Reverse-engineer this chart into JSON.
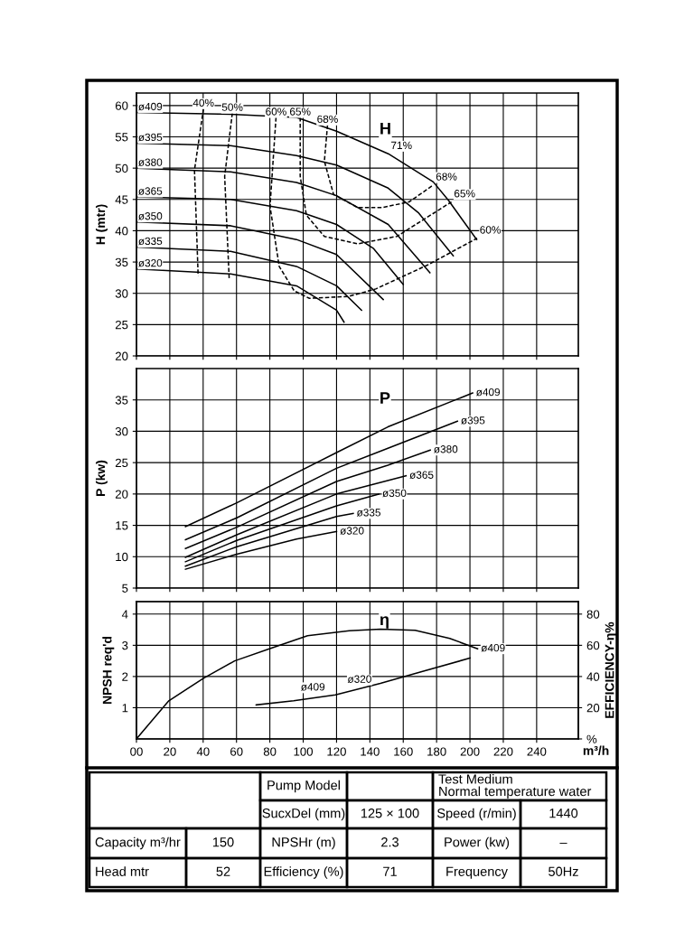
{
  "chart_data": [
    {
      "type": "line",
      "ylabel": "H (mtr)",
      "xlim": [
        0,
        265
      ],
      "ylim": [
        20,
        62
      ],
      "xticks": [
        0,
        20,
        40,
        60,
        80,
        100,
        120,
        140,
        160,
        180,
        200,
        220,
        240
      ],
      "yticks": [
        20,
        25,
        30,
        35,
        40,
        45,
        50,
        55,
        60
      ],
      "tick_labels": "y",
      "grid": true,
      "legend": false,
      "marker": "none",
      "series": [
        {
          "name": "ø409",
          "color": "#000000",
          "line_style": "solid",
          "x": [
            0,
            56.5,
            96,
            120,
            151,
            178,
            187,
            204
          ],
          "values": [
            58.9,
            58.6,
            58.1,
            55.9,
            52.3,
            47.8,
            44.9,
            38.6
          ]
        },
        {
          "name": "ø395",
          "color": "#000000",
          "line_style": "solid",
          "x": [
            0,
            56.5,
            96,
            120,
            151,
            169,
            190
          ],
          "values": [
            54.0,
            53.6,
            52.0,
            50.5,
            46.8,
            42.9,
            36.0
          ]
        },
        {
          "name": "ø380",
          "color": "#000000",
          "line_style": "solid",
          "x": [
            0,
            56.5,
            96,
            120,
            151,
            176
          ],
          "values": [
            50.0,
            49.4,
            47.7,
            45.6,
            41.0,
            33.3
          ]
        },
        {
          "name": "ø365",
          "color": "#000000",
          "line_style": "solid",
          "x": [
            0,
            56.5,
            96,
            120,
            142,
            160
          ],
          "values": [
            45.4,
            45.0,
            43.2,
            41.0,
            37.2,
            31.4
          ]
        },
        {
          "name": "ø350",
          "color": "#000000",
          "line_style": "solid",
          "x": [
            0,
            56.5,
            96,
            120,
            148
          ],
          "values": [
            41.4,
            40.8,
            38.6,
            36.2,
            29.0
          ]
        },
        {
          "name": "ø335",
          "color": "#000000",
          "line_style": "solid",
          "x": [
            0,
            56.5,
            96,
            120,
            135
          ],
          "values": [
            37.4,
            36.7,
            34.3,
            31.2,
            27.3
          ]
        },
        {
          "name": "ø320",
          "color": "#000000",
          "line_style": "solid",
          "x": [
            0,
            56.5,
            96,
            120,
            124.5
          ],
          "values": [
            33.9,
            33.1,
            31.2,
            27.3,
            25.4
          ]
        },
        {
          "name": "40%",
          "color": "#000000",
          "line_style": "dashed",
          "x": [
            40.2,
            34.8,
            37.0
          ],
          "values": [
            59.5,
            49.7,
            32.8
          ]
        },
        {
          "name": "50%",
          "color": "#000000",
          "line_style": "dashed",
          "x": [
            57.5,
            52.9,
            55.6
          ],
          "values": [
            58.8,
            48.7,
            32.4
          ]
        },
        {
          "name": "60%",
          "color": "#000000",
          "line_style": "dashed",
          "x": [
            83.7,
            80.1,
            85.6,
            94.6,
            103.7,
            127.2,
            143.5,
            174.4,
            204.3
          ],
          "values": [
            58.1,
            43.9,
            34.3,
            30.4,
            29.2,
            29.5,
            30.7,
            34.5,
            38.8
          ]
        },
        {
          "name": "65%",
          "color": "#000000",
          "line_style": "dashed",
          "x": [
            98.2,
            98.2,
            101.9,
            112.7,
            132.7,
            156.2,
            188.9
          ],
          "values": [
            58.1,
            48.7,
            42.5,
            39.1,
            37.9,
            39.1,
            44.6
          ]
        },
        {
          "name": "68%",
          "color": "#000000",
          "line_style": "dashed",
          "x": [
            114.6,
            112.7,
            118.2,
            132.7,
            147.2,
            163.5,
            178
          ],
          "values": [
            56.9,
            51.1,
            45.8,
            43.7,
            43.7,
            44.6,
            47.3
          ]
        }
      ],
      "annotations": [
        "H",
        {
          "text": "71%",
          "x": 151,
          "y": 52.3
        },
        {
          "text": "68%",
          "x": 178,
          "y": 47.3
        },
        {
          "text": "65%",
          "x": 188.9,
          "y": 44.6
        },
        {
          "text": "60%",
          "x": 204.3,
          "y": 38.8
        }
      ]
    },
    {
      "type": "line",
      "ylabel": "P (kw)",
      "xlim": [
        0,
        265
      ],
      "ylim": [
        5,
        40
      ],
      "xticks": [
        0,
        20,
        40,
        60,
        80,
        100,
        120,
        140,
        160,
        180,
        200,
        220,
        240
      ],
      "yticks": [
        5,
        10,
        15,
        20,
        25,
        30,
        35
      ],
      "tick_labels": "y",
      "grid": true,
      "legend": false,
      "marker": "none",
      "series": [
        {
          "name": "ø409",
          "color": "#000000",
          "x": [
            29.4,
            60.2,
            120,
            150.8,
            201.6
          ],
          "values": [
            14.8,
            18.6,
            26.6,
            30.7,
            36.1
          ]
        },
        {
          "name": "ø395",
          "color": "#000000",
          "x": [
            29.4,
            60.2,
            120,
            150.8,
            192.5
          ],
          "values": [
            12.7,
            16.2,
            24.1,
            27.3,
            31.6
          ]
        },
        {
          "name": "ø380",
          "color": "#000000",
          "x": [
            29.4,
            60.2,
            120,
            150.8,
            176.2
          ],
          "values": [
            11.3,
            14.7,
            22.0,
            24.6,
            27.0
          ]
        },
        {
          "name": "ø365",
          "color": "#000000",
          "x": [
            29.4,
            60.2,
            120,
            161.7
          ],
          "values": [
            9.9,
            13.5,
            20.0,
            22.9
          ]
        },
        {
          "name": "ø350",
          "color": "#000000",
          "x": [
            29.4,
            60.2,
            120,
            145.4
          ],
          "values": [
            9.2,
            12.6,
            18.1,
            20.0
          ]
        },
        {
          "name": "ø335",
          "color": "#000000",
          "x": [
            29.4,
            60.2,
            120,
            130
          ],
          "values": [
            8.5,
            11.6,
            16.4,
            16.9
          ]
        },
        {
          "name": "ø320",
          "color": "#000000",
          "x": [
            29.4,
            60.2,
            96,
            120
          ],
          "values": [
            8.0,
            10.4,
            12.8,
            14.0
          ]
        }
      ],
      "annotations": [
        "P"
      ]
    },
    {
      "type": "line",
      "xlabel": "m³/h",
      "ylabel": "NPSH req'd",
      "y2label": "EFFICIENCY-η%",
      "xlim": [
        0,
        265
      ],
      "ylim": [
        0,
        4.4
      ],
      "y2lim": [
        0,
        88
      ],
      "xticks": [
        {
          "value": 0,
          "label": "00"
        },
        20,
        40,
        60,
        80,
        100,
        120,
        140,
        160,
        180,
        200,
        220,
        240
      ],
      "yticks": [
        1,
        2,
        3,
        4
      ],
      "y2ticks": [
        {
          "value": 0,
          "label": "%"
        },
        20,
        40,
        60,
        80
      ],
      "grid": true,
      "legend": false,
      "marker": "none",
      "series": [
        {
          "color": "#000000",
          "axis": "y",
          "x": [
            71.8,
            94.3,
            119.3,
            146.3,
            169.2,
            200
          ],
          "values": [
            1.09,
            1.22,
            1.41,
            1.78,
            2.13,
            2.59
          ]
        },
        {
          "name": "ø409",
          "color": "#000000",
          "axis": "y2",
          "x": [
            0,
            19.4,
            40.2,
            58.9,
            79.7,
            102.6,
            127.6,
            146.3,
            167.1,
            187.9,
            204.6
          ],
          "values": [
            0,
            24.4,
            38.9,
            50,
            57.8,
            66.2,
            69.3,
            70.4,
            69.6,
            64.4,
            57.8
          ]
        }
      ],
      "annotations": [
        "η",
        {
          "text": "ø409",
          "x": 97,
          "y": 1.4
        },
        {
          "text": "ø320",
          "x": 125,
          "y": 1.65
        }
      ]
    },
    {
      "type": "other",
      "annotations": [
        "Pump Model",
        "Test Medium\nNormal temperature water",
        "SucxDel (mm)",
        "125 × 100",
        "Speed (r/min)",
        "1440",
        "Capacity m³/hr",
        "150",
        "NPSHr (m)",
        "2.3",
        "Power (kw)",
        "–",
        "Head mtr",
        "52",
        "Efficiency (%)",
        "71",
        "Frequency",
        "50Hz"
      ]
    }
  ]
}
